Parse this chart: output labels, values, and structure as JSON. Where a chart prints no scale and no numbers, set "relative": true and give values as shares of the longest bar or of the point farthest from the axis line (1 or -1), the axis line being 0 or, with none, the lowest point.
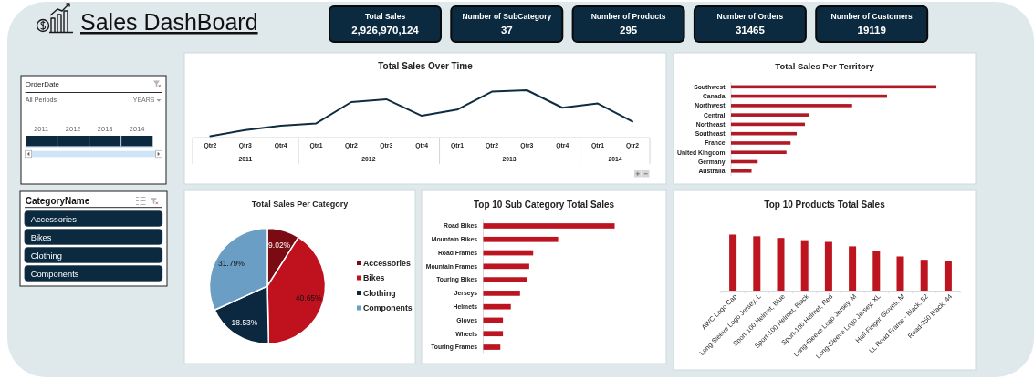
{
  "chart_data": [
    {
      "type": "other",
      "title": "Sales DashBoard",
      "categories": [
        "Total Sales",
        "Number of SubCategory",
        "Number of Products",
        "Number of Orders",
        "Number of Customers"
      ],
      "value_labels": [
        "2,926,970,124",
        "37",
        "295",
        "31465",
        "19119"
      ]
    },
    {
      "type": "bar",
      "relative": true,
      "title": "OrderDate",
      "annotations": [
        "All Periods",
        "YEARS"
      ],
      "categories": [
        "2011",
        "2012",
        "2013",
        "2014"
      ],
      "values": [
        1,
        1,
        1,
        1
      ],
      "color": "#0b2a40"
    },
    {
      "type": "line",
      "title": "Total Sales Over Time",
      "relative": true,
      "color": "#0f2d40",
      "x": [
        "2011-04",
        "2011-07",
        "2011-10",
        "2012-01",
        "2012-04",
        "2012-07",
        "2012-10",
        "2013-01",
        "2013-04",
        "2013-07",
        "2013-10",
        "2014-01",
        "2014-04"
      ],
      "values": [
        0.03,
        0.16,
        0.25,
        0.3,
        0.75,
        0.81,
        0.46,
        0.59,
        0.97,
        1,
        0.63,
        0.72,
        0.34
      ],
      "xlim": [
        "2011-02-14",
        "2014-05-16"
      ],
      "xticks": [
        {
          "value": "2011-04",
          "label": "Qtr2"
        },
        {
          "value": "2011-07",
          "label": "Qtr3"
        },
        {
          "value": "2011-10",
          "label": "Qtr4"
        },
        {
          "value": "2012-01",
          "label": "Qtr1"
        },
        {
          "value": "2012-04",
          "label": "Qtr2"
        },
        {
          "value": "2012-07",
          "label": "Qtr3"
        },
        {
          "value": "2012-10",
          "label": "Qtr4"
        },
        {
          "value": "2013-01",
          "label": "Qtr1"
        },
        {
          "value": "2013-04",
          "label": "Qtr2"
        },
        {
          "value": "2013-07",
          "label": "Qtr3"
        },
        {
          "value": "2013-10",
          "label": "Qtr4"
        },
        {
          "value": "2014-01",
          "label": "Qtr1"
        },
        {
          "value": "2014-04",
          "label": "Qtr2"
        }
      ],
      "x2lim": [
        "2011-02-14",
        "2014-05-16"
      ],
      "x2ticks": [
        {
          "value": "2011-07",
          "label": "2011"
        },
        {
          "value": "2012-05-16",
          "label": "2012"
        },
        {
          "value": "2013-05-16",
          "label": "2013"
        },
        {
          "value": "2014-02-15",
          "label": "2014"
        }
      ]
    },
    {
      "type": "bar",
      "orientation": "horizontal",
      "relative": true,
      "title": "Total Sales Per Territory",
      "categories": [
        "Southwest",
        "Canada",
        "Northwest",
        "Central",
        "Northeast",
        "Southeast",
        "France",
        "United Kingdom",
        "Germany",
        "Australia"
      ],
      "values": [
        1,
        0.76,
        0.59,
        0.38,
        0.36,
        0.32,
        0.29,
        0.27,
        0.13,
        0.1
      ],
      "color": "#b01a25"
    },
    {
      "type": "other",
      "title": "CategoryName",
      "categories": [
        "Accessories",
        "Bikes",
        "Clothing",
        "Components"
      ]
    },
    {
      "type": "pie",
      "title": "Total Sales Per Category",
      "categories": [
        "Accessories",
        "Bikes",
        "Clothing",
        "Components"
      ],
      "values": [
        9.02,
        40.65,
        18.53,
        31.79
      ],
      "colors": [
        "#7a0b12",
        "#c0111f",
        "#0c2840",
        "#6b9ec4"
      ],
      "value_labels": [
        "9.02%",
        "40.65%",
        "18.53%",
        "31.79%"
      ],
      "legend": "right"
    },
    {
      "type": "bar",
      "orientation": "horizontal",
      "relative": true,
      "title": "Top 10 Sub Category Total Sales",
      "categories": [
        "Road Bikes",
        "Mountain Bikes",
        "Road Frames",
        "Mountain Frames",
        "Touring Bikes",
        "Jerseys",
        "Helmets",
        "Gloves",
        "Wheels",
        "Touring Frames"
      ],
      "values": [
        1,
        0.57,
        0.38,
        0.35,
        0.33,
        0.28,
        0.21,
        0.15,
        0.15,
        0.13
      ],
      "color": "#bc1420"
    },
    {
      "type": "bar",
      "relative": true,
      "title": "Top 10 Products Total Sales",
      "categories": [
        "AWC Logo Cap",
        "Long-Sleeve Logo Jersey, L",
        "Sport-100 Helmet, Blue",
        "Sport-100 Helmet, Black",
        "Sport-100 Helmet, Red",
        "Long-Sleeve Logo Jersey, M",
        "Long-Sleeve Logo Jersey, XL",
        "Half-Finger Gloves, M",
        "LL Road Frame - Black, 52",
        "Road-250 Black, 44"
      ],
      "values": [
        1,
        0.97,
        0.94,
        0.9,
        0.87,
        0.79,
        0.7,
        0.61,
        0.55,
        0.52
      ],
      "color": "#bd1420"
    }
  ]
}
